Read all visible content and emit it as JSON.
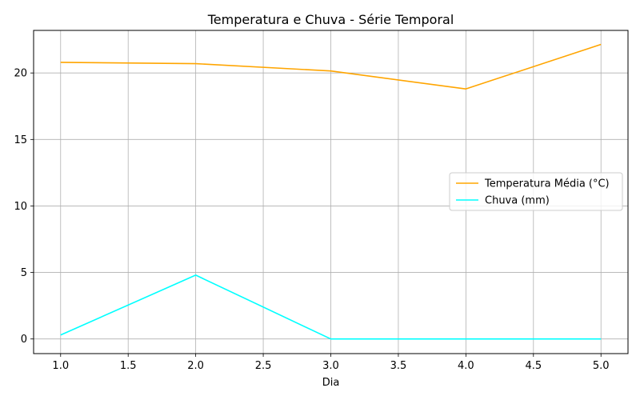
{
  "chart_data": {
    "type": "line",
    "title": "Temperatura e Chuva - Série Temporal",
    "xlabel": "Dia",
    "ylabel": "",
    "x": [
      1,
      2,
      3,
      4,
      5
    ],
    "xlim": [
      0.8,
      5.2
    ],
    "ylim": [
      -1.1,
      23.2
    ],
    "xticks": [
      1.0,
      1.5,
      2.0,
      2.5,
      3.0,
      3.5,
      4.0,
      4.5,
      5.0
    ],
    "xtick_labels": [
      "1.0",
      "1.5",
      "2.0",
      "2.5",
      "3.0",
      "3.5",
      "4.0",
      "4.5",
      "5.0"
    ],
    "yticks": [
      0,
      5,
      10,
      15,
      20
    ],
    "ytick_labels": [
      "0",
      "5",
      "10",
      "15",
      "20"
    ],
    "grid": true,
    "legend_position": "center-right",
    "series": [
      {
        "name": "Temperatura Média (°C)",
        "color": "#ffa500",
        "values": [
          20.8,
          20.7,
          20.15,
          18.8,
          22.15
        ]
      },
      {
        "name": "Chuva (mm)",
        "color": "#00ffff",
        "values": [
          0.3,
          4.8,
          0.0,
          0.0,
          0.0
        ]
      }
    ]
  }
}
